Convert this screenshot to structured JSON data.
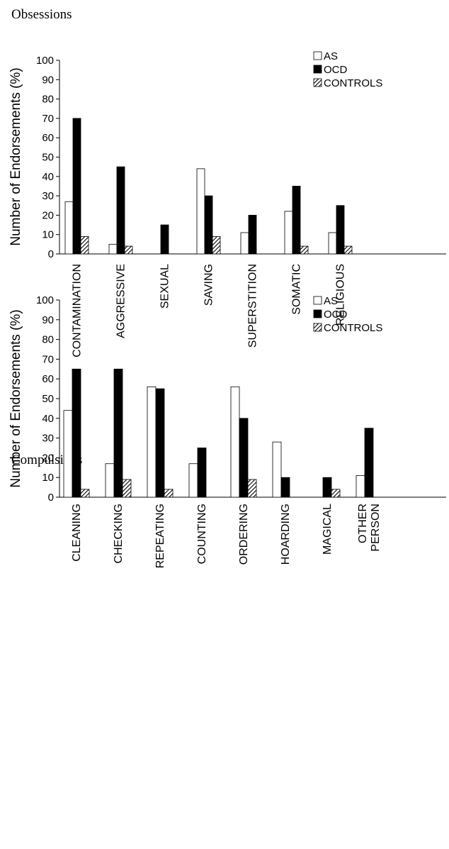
{
  "chart_data": [
    {
      "type": "bar",
      "title": "Obsessions",
      "xlabel": "",
      "ylabel": "Number of Endorsements (%)",
      "ylim": [
        0,
        100
      ],
      "yticks": [
        0,
        10,
        20,
        30,
        40,
        50,
        60,
        70,
        80,
        90,
        100
      ],
      "grid": false,
      "legend": "top-right",
      "categories": [
        "CONTAMINATION",
        "AGGRESSIVE",
        "SEXUAL",
        "SAVING",
        "SUPERSTITION",
        "SOMATIC",
        "RELIGIOUS"
      ],
      "series": [
        {
          "name": "AS",
          "values": [
            27,
            5,
            0,
            44,
            11,
            22,
            11
          ]
        },
        {
          "name": "OCD",
          "values": [
            70,
            45,
            15,
            30,
            20,
            35,
            25
          ]
        },
        {
          "name": "CONTROLS",
          "values": [
            9,
            4,
            0,
            9,
            0,
            4,
            4
          ]
        }
      ]
    },
    {
      "type": "bar",
      "title": "Compulsions",
      "xlabel": "",
      "ylabel": "Number of Endorsements (%)",
      "ylim": [
        0,
        100
      ],
      "yticks": [
        0,
        10,
        20,
        30,
        40,
        50,
        60,
        70,
        80,
        90,
        100
      ],
      "grid": false,
      "legend": "top-right",
      "categories": [
        "CLEANING",
        "CHECKING",
        "REPEATING",
        "COUNTING",
        "ORDERING",
        "HOARDING",
        "MAGICAL",
        "OTHER PERSON"
      ],
      "series": [
        {
          "name": "AS",
          "values": [
            44,
            17,
            56,
            17,
            56,
            28,
            0,
            11
          ]
        },
        {
          "name": "OCD",
          "values": [
            65,
            65,
            55,
            25,
            40,
            10,
            10,
            35
          ]
        },
        {
          "name": "CONTROLS",
          "values": [
            4,
            9,
            4,
            0,
            9,
            0,
            4,
            0
          ]
        }
      ]
    }
  ],
  "colors": {
    "AS": "#ffffff",
    "OCD": "#000000",
    "CONTROLS": "hatch"
  }
}
